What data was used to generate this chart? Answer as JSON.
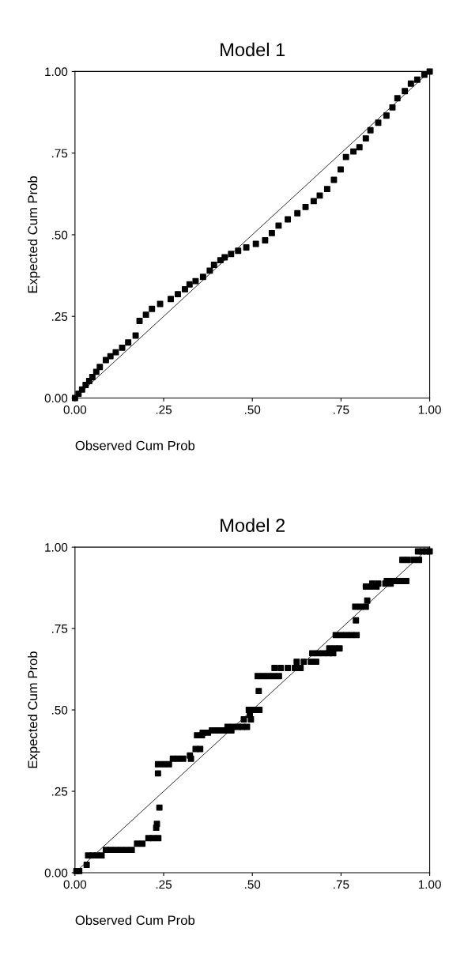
{
  "chart_data": [
    {
      "type": "scatter",
      "title": "Model 1",
      "xlabel": "Observed Cum Prob",
      "ylabel": "Expected Cum Prob",
      "grid": false,
      "legend": false,
      "xlim": [
        0,
        1
      ],
      "ylim": [
        0,
        1
      ],
      "xticks": [
        {
          "value": 0,
          "label": "0.00"
        },
        {
          "value": 0.25,
          "label": ".25"
        },
        {
          "value": 0.5,
          "label": ".50"
        },
        {
          "value": 0.75,
          "label": ".75"
        },
        {
          "value": 1,
          "label": "1.00"
        }
      ],
      "yticks": [
        {
          "value": 0,
          "label": "0.00"
        },
        {
          "value": 0.25,
          "label": ".25"
        },
        {
          "value": 0.5,
          "label": ".50"
        },
        {
          "value": 0.75,
          "label": ".75"
        },
        {
          "value": 1,
          "label": "1.00"
        }
      ],
      "series": [
        {
          "color": "#000000",
          "marker": "square",
          "x": [
            0.0,
            0.01,
            0.02,
            0.03,
            0.04,
            0.049,
            0.06,
            0.07,
            0.087,
            0.1,
            0.115,
            0.133,
            0.15,
            0.171,
            0.182,
            0.2,
            0.217,
            0.24,
            0.27,
            0.29,
            0.31,
            0.323,
            0.34,
            0.361,
            0.38,
            0.392,
            0.41,
            0.422,
            0.44,
            0.46,
            0.483,
            0.51,
            0.536,
            0.555,
            0.574,
            0.6,
            0.627,
            0.65,
            0.673,
            0.69,
            0.711,
            0.73,
            0.749,
            0.764,
            0.785,
            0.802,
            0.82,
            0.833,
            0.855,
            0.878,
            0.895,
            0.909,
            0.93,
            0.947,
            0.965,
            0.985,
            1.0
          ],
          "values": [
            0.0,
            0.013,
            0.026,
            0.04,
            0.052,
            0.064,
            0.08,
            0.095,
            0.116,
            0.128,
            0.14,
            0.154,
            0.17,
            0.191,
            0.236,
            0.255,
            0.273,
            0.288,
            0.303,
            0.318,
            0.333,
            0.348,
            0.358,
            0.371,
            0.39,
            0.408,
            0.422,
            0.431,
            0.441,
            0.451,
            0.461,
            0.472,
            0.483,
            0.505,
            0.528,
            0.547,
            0.566,
            0.585,
            0.603,
            0.62,
            0.64,
            0.668,
            0.7,
            0.738,
            0.755,
            0.768,
            0.795,
            0.82,
            0.843,
            0.865,
            0.89,
            0.918,
            0.94,
            0.963,
            0.975,
            0.99,
            1.0
          ]
        },
        {
          "type": "line",
          "color": "#000000",
          "x": [
            0,
            1
          ],
          "values": [
            0,
            1
          ]
        }
      ]
    },
    {
      "type": "scatter",
      "title": "Model 2",
      "xlabel": "Observed Cum Prob",
      "ylabel": "Expected Cum Prob",
      "grid": false,
      "legend": false,
      "xlim": [
        0,
        1
      ],
      "ylim": [
        0,
        1
      ],
      "xticks": [
        {
          "value": 0,
          "label": "0.00"
        },
        {
          "value": 0.25,
          "label": ".25"
        },
        {
          "value": 0.5,
          "label": ".50"
        },
        {
          "value": 0.75,
          "label": ".75"
        },
        {
          "value": 1,
          "label": "1.00"
        }
      ],
      "yticks": [
        {
          "value": 0,
          "label": "0.00"
        },
        {
          "value": 0.25,
          "label": ".25"
        },
        {
          "value": 0.5,
          "label": ".50"
        },
        {
          "value": 0.75,
          "label": ".75"
        },
        {
          "value": 1,
          "label": "1.00"
        }
      ],
      "series": [
        {
          "color": "#000000",
          "marker": "square",
          "x": [
            0.004,
            0.012,
            0.033,
            0.037,
            0.05,
            0.062,
            0.075,
            0.087,
            0.1,
            0.115,
            0.13,
            0.145,
            0.16,
            0.175,
            0.19,
            0.207,
            0.22,
            0.235,
            0.229,
            0.231,
            0.238,
            0.234,
            0.234,
            0.25,
            0.265,
            0.276,
            0.29,
            0.305,
            0.324,
            0.327,
            0.34,
            0.353,
            0.344,
            0.358,
            0.36,
            0.375,
            0.386,
            0.397,
            0.41,
            0.425,
            0.441,
            0.43,
            0.445,
            0.46,
            0.472,
            0.485,
            0.476,
            0.496,
            0.493,
            0.49,
            0.505,
            0.52,
            0.518,
            0.515,
            0.53,
            0.545,
            0.56,
            0.575,
            0.5625,
            0.58,
            0.6,
            0.62,
            0.636,
            0.625,
            0.645,
            0.665,
            0.68,
            0.669,
            0.685,
            0.7,
            0.715,
            0.728,
            0.717,
            0.732,
            0.746,
            0.735,
            0.75,
            0.765,
            0.78,
            0.794,
            0.792,
            0.79,
            0.805,
            0.82,
            0.824,
            0.82,
            0.835,
            0.85,
            0.838,
            0.855,
            0.875,
            0.89,
            0.879,
            0.895,
            0.91,
            0.925,
            0.934,
            0.923,
            0.938,
            0.955,
            0.97,
            0.967,
            0.98,
            0.99,
            1.0
          ],
          "values": [
            0.005,
            0.005,
            0.024,
            0.053,
            0.053,
            0.053,
            0.053,
            0.07,
            0.07,
            0.07,
            0.07,
            0.07,
            0.07,
            0.089,
            0.089,
            0.106,
            0.106,
            0.106,
            0.138,
            0.15,
            0.2,
            0.305,
            0.333,
            0.333,
            0.333,
            0.35,
            0.35,
            0.35,
            0.36,
            0.35,
            0.38,
            0.38,
            0.422,
            0.422,
            0.43,
            0.43,
            0.437,
            0.437,
            0.437,
            0.437,
            0.437,
            0.448,
            0.448,
            0.448,
            0.448,
            0.448,
            0.471,
            0.471,
            0.485,
            0.5,
            0.5,
            0.5,
            0.558,
            0.604,
            0.604,
            0.604,
            0.604,
            0.604,
            0.629,
            0.629,
            0.629,
            0.629,
            0.629,
            0.648,
            0.648,
            0.648,
            0.648,
            0.674,
            0.674,
            0.674,
            0.674,
            0.674,
            0.689,
            0.689,
            0.689,
            0.73,
            0.73,
            0.73,
            0.73,
            0.73,
            0.775,
            0.817,
            0.817,
            0.817,
            0.836,
            0.879,
            0.879,
            0.879,
            0.888,
            0.888,
            0.888,
            0.888,
            0.896,
            0.896,
            0.896,
            0.896,
            0.896,
            0.961,
            0.961,
            0.961,
            0.961,
            0.987,
            0.987,
            0.987,
            0.987
          ]
        },
        {
          "type": "line",
          "color": "#000000",
          "x": [
            0,
            1
          ],
          "values": [
            0,
            1
          ]
        }
      ]
    }
  ]
}
